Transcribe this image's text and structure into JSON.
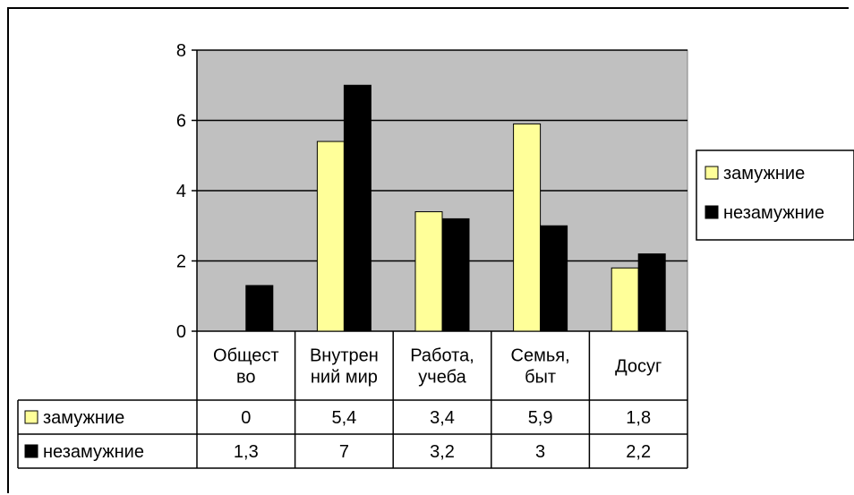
{
  "chart_data": {
    "type": "bar",
    "title": "",
    "xlabel": "",
    "ylabel": "",
    "ylim": [
      0,
      8
    ],
    "yticks": [
      0,
      2,
      4,
      6,
      8
    ],
    "grid": true,
    "legend_position": "right",
    "categories": [
      [
        "Общест",
        "во"
      ],
      [
        "Внутрен",
        "ний мир"
      ],
      [
        "Работа,",
        "учеба"
      ],
      [
        "Семья,",
        "быт"
      ],
      [
        "Досуг"
      ]
    ],
    "series": [
      {
        "name": "замужние",
        "values": [
          0,
          5.4,
          3.4,
          5.9,
          1.8
        ],
        "value_labels": [
          "0",
          "5,4",
          "3,4",
          "5,9",
          "1,8"
        ],
        "color": "#ffff99"
      },
      {
        "name": "незамужние",
        "values": [
          1.3,
          7,
          3.2,
          3,
          2.2
        ],
        "value_labels": [
          "1,3",
          "7",
          "3,2",
          "3",
          "2,2"
        ],
        "color": "#000000"
      }
    ],
    "data_table": true
  },
  "colors": {
    "plot_background": "#c0c0c0",
    "bar_outline": "#000000"
  }
}
